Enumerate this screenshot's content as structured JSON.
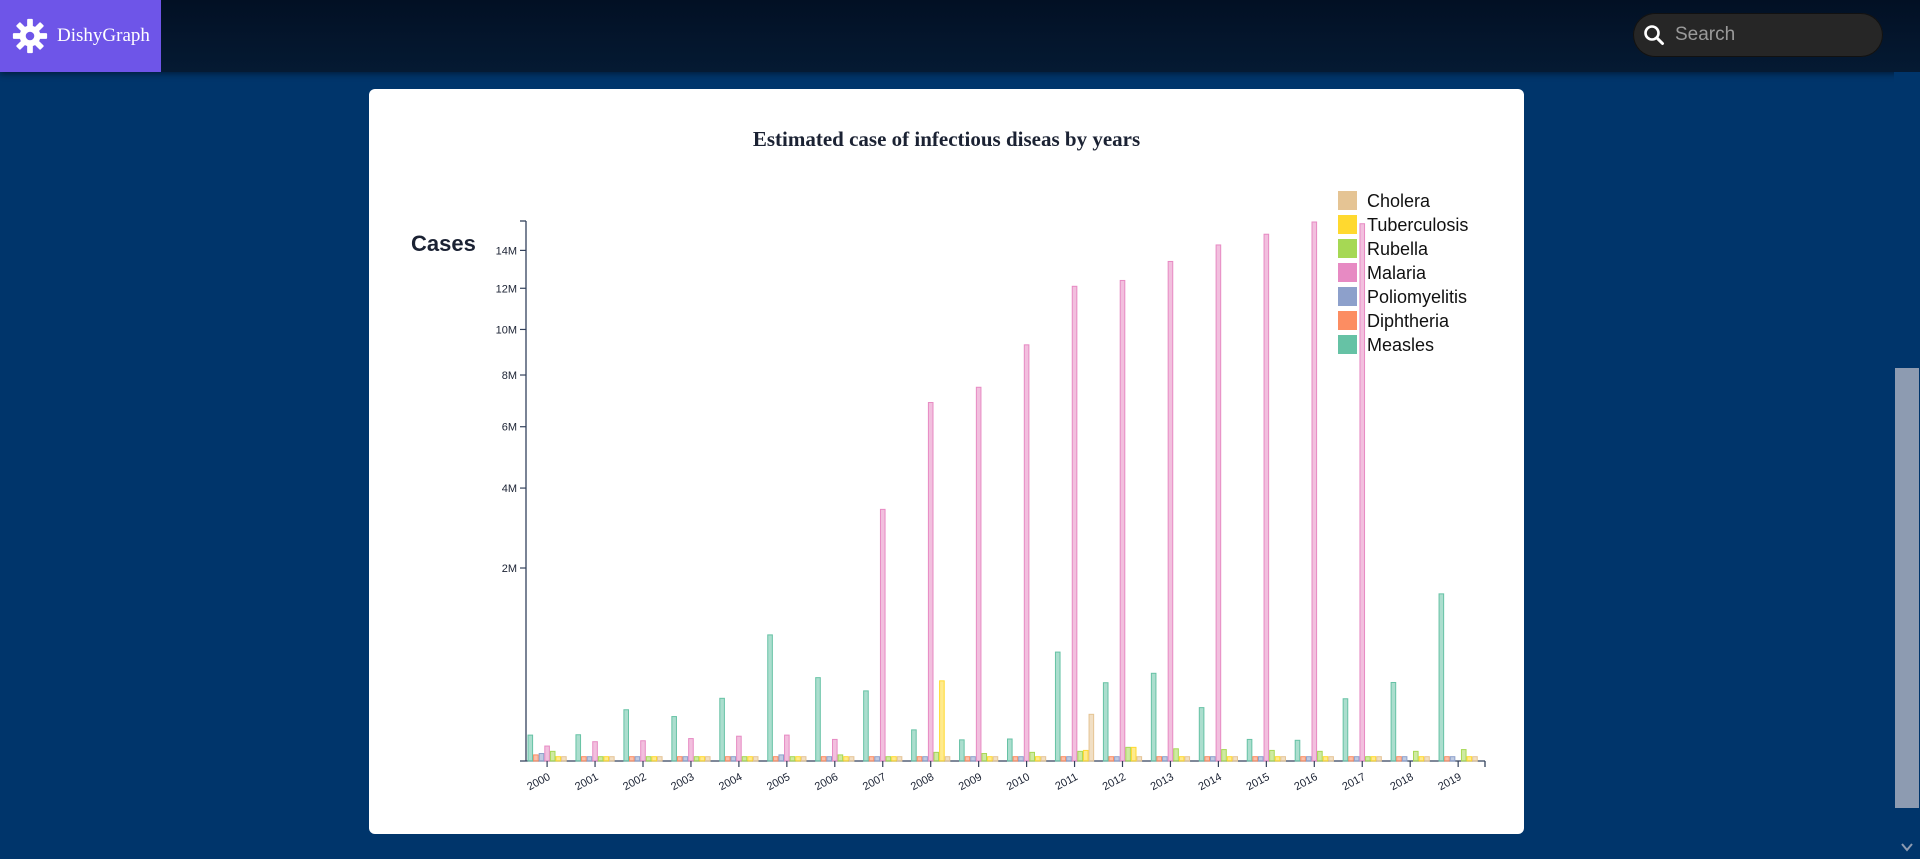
{
  "app": {
    "name": "DishyGraph",
    "search_placeholder": "Search"
  },
  "colors": {
    "page_bg": "#00356b",
    "brand_bg": "#6e55e8",
    "axis": "#33415c"
  },
  "icons": [
    "gear-icon",
    "search-icon",
    "chevron-down-icon"
  ],
  "chart_data": {
    "type": "bar",
    "title": "Estimated case of infectious diseas by years",
    "ylabel": "Cases",
    "xlabel": "",
    "scale": "sqrt",
    "ylim": [
      0,
      15600000
    ],
    "yticks": [
      2000000,
      4000000,
      6000000,
      8000000,
      10000000,
      12000000,
      14000000
    ],
    "ytick_labels": [
      "2M",
      "4M",
      "6M",
      "8M",
      "10M",
      "12M",
      "14M"
    ],
    "legend_position": "top-right",
    "categories": [
      "2000",
      "2001",
      "2002",
      "2003",
      "2004",
      "2005",
      "2006",
      "2007",
      "2008",
      "2009",
      "2010",
      "2011",
      "2012",
      "2013",
      "2014",
      "2015",
      "2016",
      "2017",
      "2018",
      "2019"
    ],
    "series": [
      {
        "name": "Measles",
        "color": "#66c2a5",
        "values": [
          36000,
          37000,
          141000,
          106000,
          211000,
          854000,
          373000,
          264000,
          52000,
          24000,
          26000,
          637000,
          329000,
          413000,
          153000,
          25000,
          23000,
          208000,
          331000,
          1500000
        ]
      },
      {
        "name": "Diphtheria",
        "color": "#fc8d62",
        "values": [
          2000,
          1000,
          1000,
          1000,
          1000,
          1000,
          1000,
          1000,
          1000,
          1000,
          1000,
          1000,
          1000,
          1000,
          1000,
          1000,
          1000,
          1000,
          1000,
          1000
        ]
      },
      {
        "name": "Poliomyelitis",
        "color": "#8da0cb",
        "values": [
          3000,
          1000,
          1000,
          1000,
          1000,
          2000,
          1000,
          1000,
          1000,
          1000,
          1000,
          1000,
          1000,
          1000,
          1000,
          1000,
          1000,
          1000,
          1000,
          1000
        ]
      },
      {
        "name": "Malaria",
        "color": "#e78ac3",
        "values": [
          12000,
          20000,
          22000,
          27000,
          33000,
          36000,
          25000,
          3400000,
          6900000,
          7500000,
          9300000,
          12100000,
          12400000,
          13400000,
          14300000,
          14900000,
          15600000,
          15500000,
          0,
          0
        ]
      },
      {
        "name": "Rubella",
        "color": "#a6d854",
        "values": [
          5000,
          1000,
          1000,
          1000,
          1000,
          1000,
          2000,
          1000,
          4000,
          3000,
          4000,
          5000,
          10000,
          8000,
          7000,
          6000,
          5000,
          1000,
          5000,
          7000
        ]
      },
      {
        "name": "Tuberculosis",
        "color": "#ffd92f",
        "values": [
          1000,
          1000,
          1000,
          1000,
          1000,
          1000,
          1000,
          1000,
          345000,
          1000,
          1000,
          6000,
          10000,
          1000,
          1000,
          1000,
          1000,
          1000,
          1000,
          1000
        ]
      },
      {
        "name": "Cholera",
        "color": "#e5c494",
        "values": [
          1000,
          1000,
          1000,
          1000,
          1000,
          1000,
          1000,
          1000,
          1000,
          1000,
          1000,
          117000,
          1000,
          1000,
          1000,
          1000,
          1000,
          1000,
          1000,
          1000
        ]
      }
    ],
    "legend_order": [
      "Cholera",
      "Tuberculosis",
      "Rubella",
      "Malaria",
      "Poliomyelitis",
      "Diphtheria",
      "Measles"
    ]
  }
}
